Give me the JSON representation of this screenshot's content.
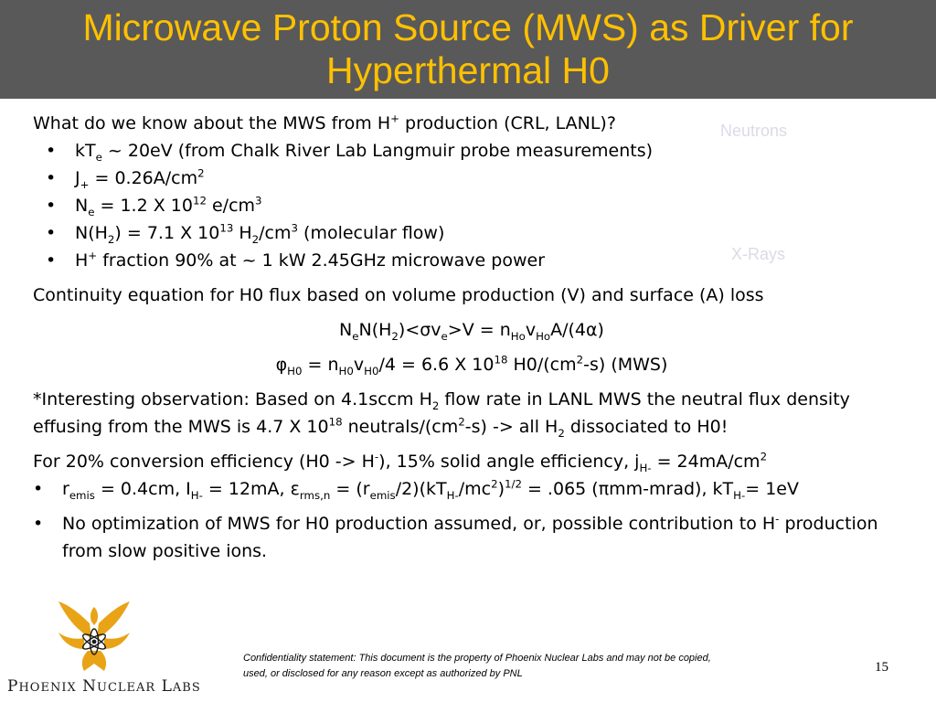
{
  "title": "Microwave Proton Source (MWS) as Driver for Hyperthermal H0",
  "background_labels": {
    "neutrons": "Neutrons",
    "xrays": "X-Rays"
  },
  "intro": {
    "pre": "What do we know about the MWS from H",
    "sup": "+",
    "post": " production (CRL, LANL)?"
  },
  "bullets": {
    "kte": {
      "a": "kT",
      "sub": "e",
      "b": " ~ 20eV (from Chalk River Lab Langmuir probe measurements)"
    },
    "jplus": {
      "a": "J",
      "sub": "+",
      "b": " = 0.26A/cm",
      "sup": "2"
    },
    "ne": {
      "a": "N",
      "sub": "e",
      "b": " = 1.2 X 10",
      "sup": "12",
      "c": " e/cm",
      "sup2": "3"
    },
    "nh2": {
      "a": "N(H",
      "sub": "2",
      "b": ") = 7.1 X 10",
      "sup": "13",
      "c": " H",
      "sub2": "2",
      "d": "/cm",
      "sup2": "3",
      "e": "  (molecular flow)"
    },
    "hplus": {
      "a": "H",
      "sup": "+",
      "b": " fraction 90% at ~ 1 kW 2.45GHz microwave power"
    }
  },
  "continuity": "Continuity equation for H0 flux based on volume production (V) and surface (A) loss",
  "eq1": {
    "a": "N",
    "sub1": "e",
    "b": "N(H",
    "sub2": "2",
    "c": ")<",
    "sigma": "σ",
    "d": "v",
    "sub3": "e",
    "e": ">V = n",
    "sub4": "Ho",
    "f": "v",
    "sub5": "Ho",
    "g": "A/(4",
    "alpha": "α",
    "h": ")"
  },
  "eq2": {
    "phi": "φ",
    "sub1": "H0",
    "a": " = n",
    "sub2": "H0",
    "b": "v",
    "sub3": "H0",
    "c": "/4 = 6.6 X 10",
    "sup1": "18",
    "d": " H0/(cm",
    "sup2": "2",
    "e": "-s)  (MWS)"
  },
  "observation": {
    "a": "*Interesting observation: Based on 4.1sccm H",
    "sub1": "2",
    "b": " flow rate in LANL MWS the neutral flux density effusing from the MWS is 4.7 X 10",
    "sup1": "18",
    "c": " neutrals/(cm",
    "sup2": "2",
    "d": "-s) -> all H",
    "sub2": "2",
    "e": " dissociated to H0!"
  },
  "conversion": {
    "a": "For 20% conversion efficiency (H0 -> H",
    "sup1": "-",
    "b": "), 15% solid angle efficiency, j",
    "sub1": "H-",
    "c": " = 24mA/cm",
    "sup2": "2"
  },
  "remis": {
    "a": "r",
    "sub1": "emis",
    "b": " = 0.4cm, I",
    "sub2": "H-",
    "c": " = 12mA, ",
    "epsilon": "ε",
    "sub3": "rms,n",
    "d": " = (r",
    "sub4": "emis",
    "e": "/2)(kT",
    "sub5": "H-",
    "f": "/mc",
    "sup1": "2",
    "g": ")",
    "sup2": "1/2",
    "h": " = .065 (",
    "pi": "π",
    "i": "mm-mrad), kT",
    "sub6": "H-",
    "j": "= 1eV"
  },
  "optimization": {
    "a": "No optimization of MWS for H0 production assumed, or, possible contribution to H",
    "sup1": "-",
    "b": " production from slow positive ions."
  },
  "logo_text": {
    "p": "P",
    "hoenix": "HOENIX",
    "n": " N",
    "uclear": "UCLEAR",
    "l": " L",
    "abs": "ABS"
  },
  "confidentiality": "Confidentiality statement: This document is the property of Phoenix Nuclear Labs and may not be copied, used, or disclosed for any reason except as authorized by PNL",
  "page_number": "15",
  "colors": {
    "title_bar": "#595959",
    "title_text": "#ffc000",
    "logo_gold": "#e8a317",
    "ghost_text": "#dadbe7"
  }
}
